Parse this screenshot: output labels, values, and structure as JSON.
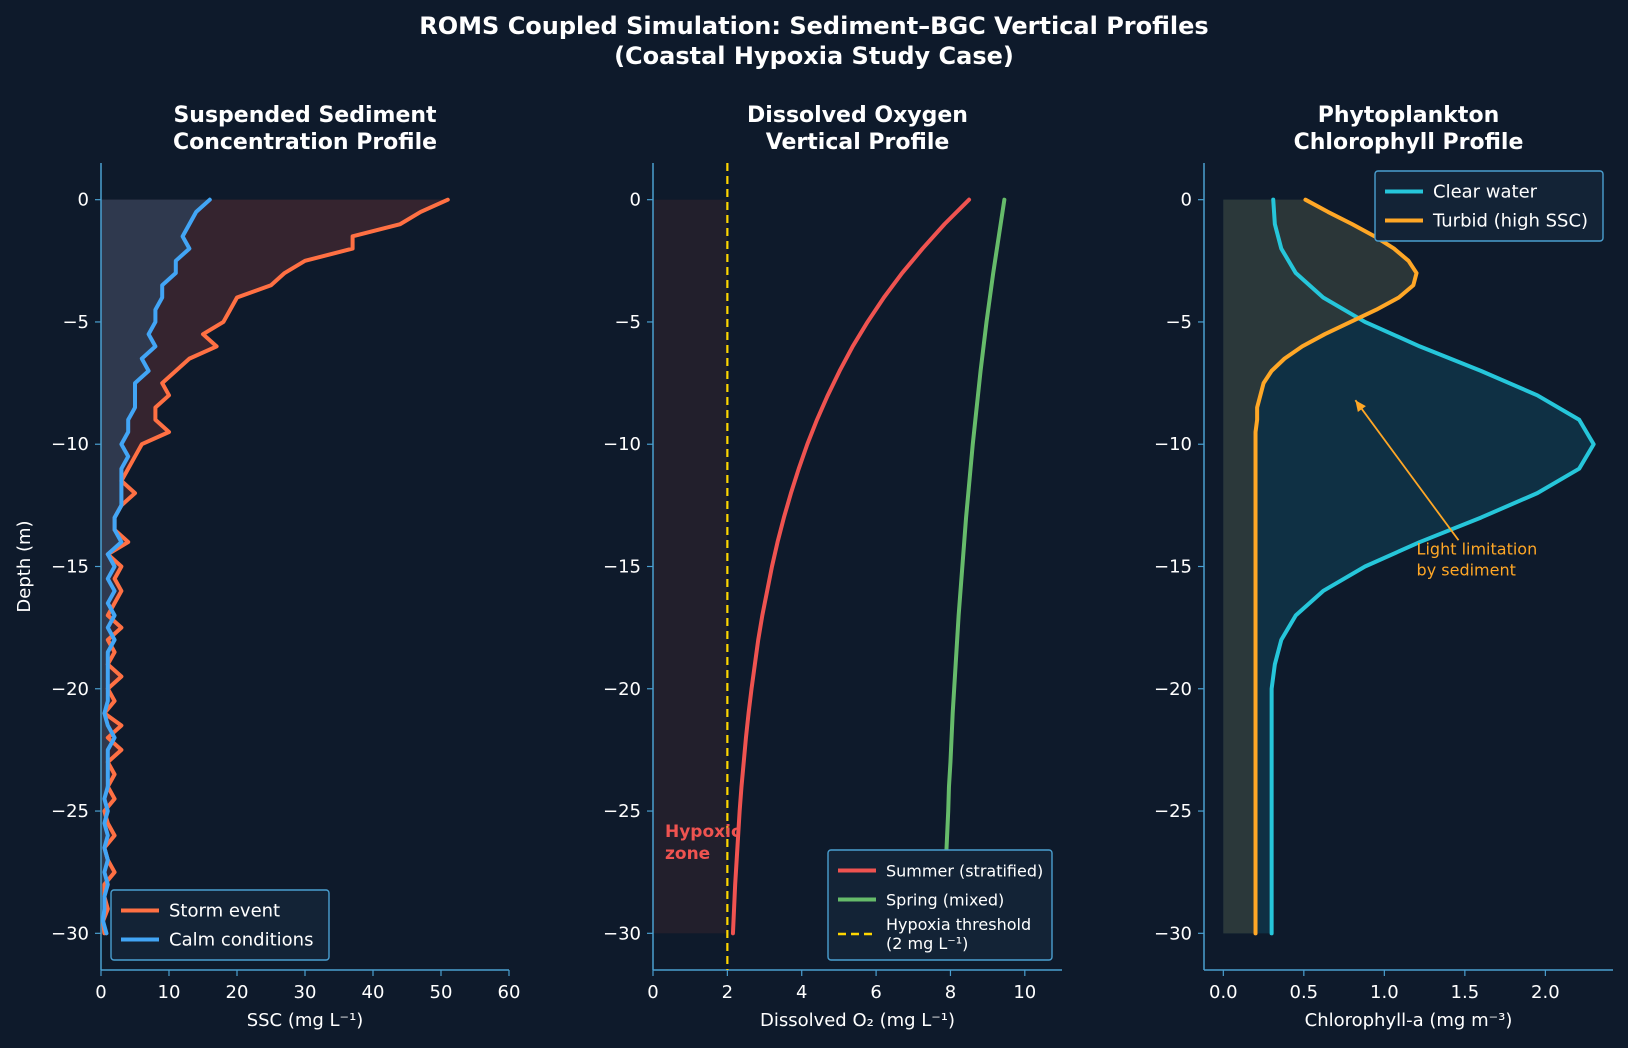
{
  "figure": {
    "title_line1": "ROMS Coupled Simulation: Sediment–BGC Vertical Profiles",
    "title_line2": "(Coastal Hypoxia Study Case)",
    "background": "#0e1a2b",
    "axis_color": "#4a9fd0"
  },
  "chart_data": [
    {
      "type": "line",
      "title": "Suspended Sediment\nConcentration Profile",
      "xlabel": "SSC (mg L⁻¹)",
      "ylabel": "Depth (m)",
      "xlim": [
        0,
        60
      ],
      "ylim": [
        -31.5,
        1.5
      ],
      "xticks": [
        0,
        10,
        20,
        30,
        40,
        50,
        60
      ],
      "yticks": [
        0,
        -5,
        -10,
        -15,
        -20,
        -25,
        -30
      ],
      "legend_position": "lower-left",
      "series": [
        {
          "name": "Storm event",
          "color": "#ff7043",
          "fill_color": "#3a2630",
          "y": [
            0,
            -0.5,
            -1,
            -1.5,
            -2,
            -2.5,
            -3,
            -3.5,
            -4,
            -4.5,
            -5,
            -5.5,
            -6,
            -6.5,
            -7,
            -7.5,
            -8,
            -8.5,
            -9,
            -9.5,
            -10,
            -10.5,
            -11,
            -11.5,
            -12,
            -12.5,
            -13,
            -13.5,
            -14,
            -14.5,
            -15,
            -15.5,
            -16,
            -16.5,
            -17,
            -17.5,
            -18,
            -18.5,
            -19,
            -19.5,
            -20,
            -20.5,
            -21,
            -21.5,
            -22,
            -22.5,
            -23,
            -23.5,
            -24,
            -24.5,
            -25,
            -25.5,
            -26,
            -26.5,
            -27,
            -27.5,
            -28,
            -28.5,
            -29,
            -29.5,
            -30
          ],
          "x": [
            51,
            47,
            44,
            37,
            37,
            30,
            27,
            25,
            20,
            19,
            18,
            15,
            17,
            13,
            11,
            9,
            10,
            8,
            8,
            10,
            6,
            5,
            4,
            3,
            5,
            3,
            2,
            2,
            4,
            1,
            3,
            2,
            3,
            2,
            1,
            3,
            1,
            2,
            1,
            3,
            1,
            2,
            0.5,
            3,
            1,
            3,
            1,
            2,
            1,
            2,
            0.5,
            1,
            2,
            0.5,
            1,
            2,
            0.5,
            0.5,
            1,
            0.3,
            0.5
          ]
        },
        {
          "name": "Calm conditions",
          "color": "#42a5f5",
          "fill_color": "#2f3c52",
          "y": [
            0,
            -0.5,
            -1,
            -1.5,
            -2,
            -2.5,
            -3,
            -3.5,
            -4,
            -4.5,
            -5,
            -5.5,
            -6,
            -6.5,
            -7,
            -7.5,
            -8,
            -8.5,
            -9,
            -9.5,
            -10,
            -10.5,
            -11,
            -11.5,
            -12,
            -12.5,
            -13,
            -13.5,
            -14,
            -14.5,
            -15,
            -15.5,
            -16,
            -16.5,
            -17,
            -17.5,
            -18,
            -18.5,
            -19,
            -19.5,
            -20,
            -20.5,
            -21,
            -21.5,
            -22,
            -22.5,
            -23,
            -23.5,
            -24,
            -24.5,
            -25,
            -25.5,
            -26,
            -26.5,
            -27,
            -27.5,
            -28,
            -28.5,
            -29,
            -29.5,
            -30
          ],
          "x": [
            16,
            14,
            13,
            12,
            13,
            11,
            11,
            9,
            9,
            8,
            8,
            7,
            8,
            6,
            7,
            5,
            5,
            5,
            4,
            4,
            3,
            4,
            3,
            3,
            3,
            3,
            2,
            2,
            3,
            1,
            2,
            1,
            2,
            1,
            2,
            1,
            2,
            1,
            1,
            1,
            1,
            1,
            0.5,
            1,
            2,
            1,
            1,
            1,
            1,
            0.5,
            1,
            0.5,
            1,
            0.5,
            1,
            0.5,
            1,
            0.5,
            0.5,
            0.3,
            0.8
          ]
        }
      ]
    },
    {
      "type": "line",
      "title": "Dissolved Oxygen\nVertical Profile",
      "xlabel": "Dissolved O₂ (mg L⁻¹)",
      "xlim": [
        0,
        11
      ],
      "ylim": [
        -31.5,
        1.5
      ],
      "xticks": [
        0,
        2,
        4,
        6,
        8,
        10
      ],
      "yticks": [
        0,
        -5,
        -10,
        -15,
        -20,
        -25,
        -30
      ],
      "legend_position": "lower-right",
      "shaded_region": {
        "x": [
          0,
          2
        ],
        "y": [
          -30,
          0
        ],
        "label": "Hypoxic\nzone",
        "color": "#221f2c"
      },
      "threshold": {
        "x": 2,
        "name": "Hypoxia threshold\n(2 mg L⁻¹)",
        "color": "#ffd600"
      },
      "series": [
        {
          "name": "Summer (stratified)",
          "color": "#ef5350",
          "y": [
            0,
            -1,
            -2,
            -3,
            -4,
            -5,
            -6,
            -7,
            -8,
            -9,
            -10,
            -11,
            -12,
            -13,
            -14,
            -15,
            -16,
            -17,
            -18,
            -19,
            -20,
            -21,
            -22,
            -23,
            -24,
            -25,
            -26,
            -27,
            -28,
            -29,
            -30
          ],
          "x": [
            8.5,
            7.84,
            7.25,
            6.7,
            6.21,
            5.77,
            5.37,
            5.02,
            4.7,
            4.41,
            4.15,
            3.92,
            3.71,
            3.52,
            3.35,
            3.2,
            3.07,
            2.94,
            2.83,
            2.74,
            2.65,
            2.57,
            2.5,
            2.44,
            2.38,
            2.33,
            2.29,
            2.25,
            2.21,
            2.18,
            2.15
          ]
        },
        {
          "name": "Spring (mixed)",
          "color": "#66bb6a",
          "y": [
            0,
            -1,
            -2,
            -3,
            -4,
            -5,
            -6,
            -7,
            -8,
            -9,
            -10,
            -11,
            -12,
            -13,
            -14,
            -15,
            -16,
            -17,
            -18,
            -19,
            -20,
            -21,
            -22,
            -23,
            -24,
            -25,
            -26,
            -27,
            -28,
            -29,
            -30
          ],
          "x": [
            9.45,
            9.35,
            9.25,
            9.15,
            9.06,
            8.97,
            8.89,
            8.81,
            8.74,
            8.67,
            8.6,
            8.54,
            8.48,
            8.42,
            8.37,
            8.32,
            8.27,
            8.22,
            8.18,
            8.14,
            8.1,
            8.06,
            8.03,
            8.0,
            7.96,
            7.94,
            7.91,
            7.88,
            7.86,
            7.84,
            7.81
          ]
        }
      ]
    },
    {
      "type": "line",
      "title": "Phytoplankton\nChlorophyll Profile",
      "xlabel": "Chlorophyll-a (mg m⁻³)",
      "xlim": [
        -0.12,
        2.42
      ],
      "ylim": [
        -31.5,
        1.5
      ],
      "xticks": [
        0.0,
        0.5,
        1.0,
        1.5,
        2.0
      ],
      "yticks": [
        0,
        -5,
        -10,
        -15,
        -20,
        -25,
        -30
      ],
      "legend_position": "upper-right",
      "annotation": {
        "text": "Light limitation\nby sediment",
        "color": "#ffa726",
        "xy": [
          0.82,
          -8.2
        ],
        "xytext": [
          1.2,
          -14.5
        ]
      },
      "series": [
        {
          "name": "Clear water",
          "color": "#26c6da",
          "fill_color": "#0f3347",
          "y": [
            0,
            -1,
            -2,
            -3,
            -4,
            -5,
            -6,
            -7,
            -8,
            -9,
            -10,
            -11,
            -12,
            -13,
            -14,
            -15,
            -16,
            -17,
            -18,
            -19,
            -20,
            -21,
            -22,
            -23,
            -24,
            -25,
            -26,
            -27,
            -28,
            -29,
            -30
          ],
          "x": [
            0.31,
            0.32,
            0.36,
            0.45,
            0.62,
            0.88,
            1.22,
            1.6,
            1.95,
            2.21,
            2.3,
            2.21,
            1.95,
            1.6,
            1.22,
            0.88,
            0.62,
            0.45,
            0.36,
            0.32,
            0.3,
            0.3,
            0.3,
            0.3,
            0.3,
            0.3,
            0.3,
            0.3,
            0.3,
            0.3,
            0.3
          ]
        },
        {
          "name": "Turbid (high SSC)",
          "color": "#ffa726",
          "fill_color": "#2f3a3a",
          "y": [
            0,
            -0.5,
            -1,
            -1.5,
            -2,
            -2.5,
            -3,
            -3.5,
            -4,
            -4.5,
            -5,
            -5.5,
            -6,
            -6.5,
            -7,
            -7.5,
            -8,
            -8.5,
            -9,
            -9.5,
            -10,
            -12,
            -15,
            -20,
            -25,
            -30
          ],
          "x": [
            0.51,
            0.65,
            0.8,
            0.94,
            1.06,
            1.15,
            1.2,
            1.18,
            1.09,
            0.95,
            0.79,
            0.63,
            0.49,
            0.38,
            0.3,
            0.25,
            0.23,
            0.21,
            0.21,
            0.2,
            0.2,
            0.2,
            0.2,
            0.2,
            0.2,
            0.2
          ]
        }
      ]
    }
  ]
}
